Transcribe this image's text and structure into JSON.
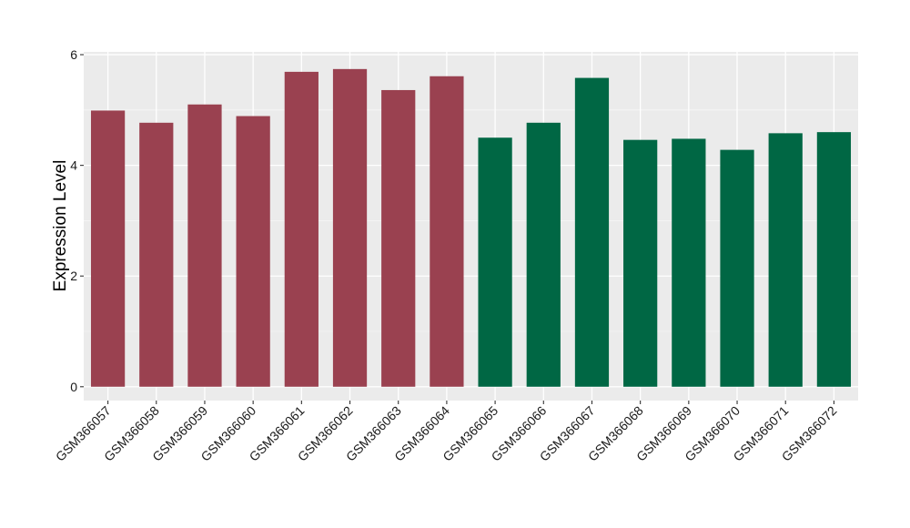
{
  "chart_data": {
    "type": "bar",
    "title": "",
    "xlabel": "",
    "ylabel": "Expression Level",
    "ylim": [
      -0.25,
      6.05
    ],
    "yticks": [
      0,
      2,
      4,
      6
    ],
    "grid": true,
    "background": "#ebebeb",
    "categories": [
      "GSM366057",
      "GSM366058",
      "GSM366059",
      "GSM366060",
      "GSM366061",
      "GSM366062",
      "GSM366063",
      "GSM366064",
      "GSM366065",
      "GSM366066",
      "GSM366067",
      "GSM366068",
      "GSM366069",
      "GSM366070",
      "GSM366071",
      "GSM366072"
    ],
    "values": [
      4.99,
      4.77,
      5.1,
      4.89,
      5.69,
      5.74,
      5.36,
      5.61,
      4.5,
      4.77,
      5.58,
      4.46,
      4.48,
      4.28,
      4.58,
      4.6
    ],
    "colors": [
      "#9a4150",
      "#9a4150",
      "#9a4150",
      "#9a4150",
      "#9a4150",
      "#9a4150",
      "#9a4150",
      "#9a4150",
      "#006744",
      "#006744",
      "#006744",
      "#006744",
      "#006744",
      "#006744",
      "#006744",
      "#006744"
    ]
  }
}
